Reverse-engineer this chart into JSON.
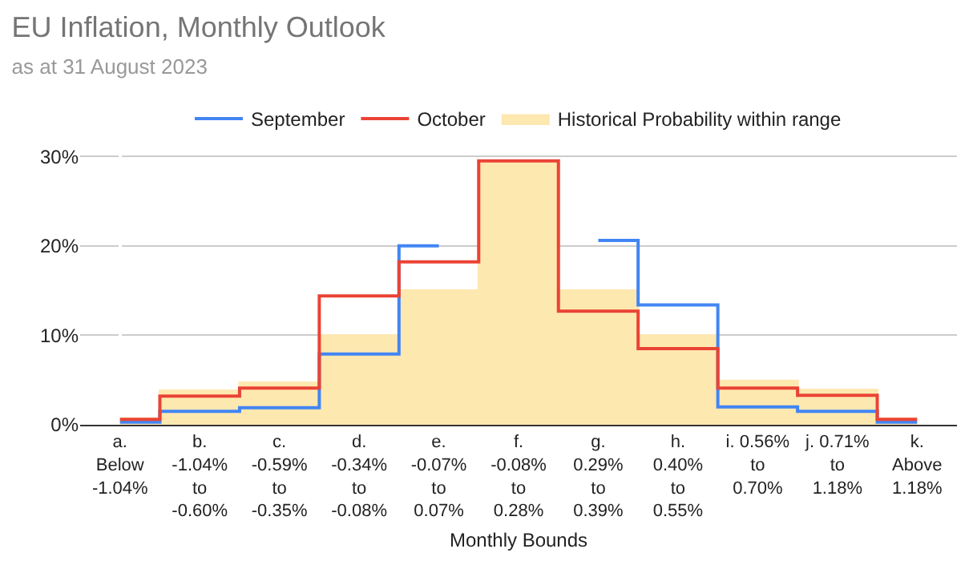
{
  "chart_data": {
    "type": "step",
    "title": "EU Inflation, Monthly Outlook",
    "subtitle": "as at 31 August 2023",
    "xlabel": "Monthly Bounds",
    "categories": [
      "a.\nBelow\n-1.04%",
      "b.\n-1.04%\nto\n-0.60%",
      "c.\n-0.59%\nto\n-0.35%",
      "d.\n-0.34%\nto\n-0.08%",
      "e.\n-0.07%\nto\n0.07%",
      "f.\n-0.08%\nto\n0.28%",
      "g.\n0.29%\nto\n0.39%",
      "h.\n0.40%\nto\n0.55%",
      "i. 0.56%\nto\n0.70%",
      "j. 0.71%\nto\n1.18%",
      "k.\nAbove\n1.18%"
    ],
    "series": [
      {
        "name": "Historical Probability within range",
        "type": "area",
        "color": "#fde8b0",
        "values": [
          0.7,
          3.8,
          4.7,
          10,
          15,
          29.5,
          15,
          10,
          4.9,
          3.9,
          0.7
        ]
      },
      {
        "name": "September",
        "color": "#4285f4",
        "values": [
          0.3,
          1.5,
          1.9,
          7.9,
          20,
          null,
          20.6,
          13.4,
          2,
          1.5,
          0.3
        ]
      },
      {
        "name": "October",
        "color": "#ea4335",
        "values": [
          0.6,
          3.2,
          4.1,
          14.4,
          18.2,
          29.5,
          12.7,
          8.5,
          4.1,
          3.3,
          0.6
        ]
      }
    ],
    "ylim": [
      0,
      31
    ],
    "yticks": [
      {
        "value": 0,
        "label": "0%"
      },
      {
        "value": 10,
        "label": "10%"
      },
      {
        "value": 20,
        "label": "20%"
      },
      {
        "value": 30,
        "label": "30%"
      }
    ],
    "grid": "y",
    "legend": "top"
  }
}
